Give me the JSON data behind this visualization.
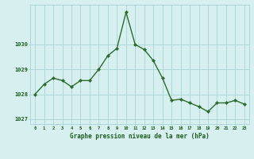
{
  "x": [
    0,
    1,
    2,
    3,
    4,
    5,
    6,
    7,
    8,
    9,
    10,
    11,
    12,
    13,
    14,
    15,
    16,
    17,
    18,
    19,
    20,
    21,
    22,
    23
  ],
  "y": [
    1028.0,
    1028.4,
    1028.65,
    1028.55,
    1028.3,
    1028.55,
    1028.55,
    1029.0,
    1029.55,
    1029.85,
    1031.3,
    1030.0,
    1029.8,
    1029.35,
    1028.65,
    1027.75,
    1027.8,
    1027.65,
    1027.5,
    1027.3,
    1027.65,
    1027.65,
    1027.75,
    1027.6
  ],
  "line_color": "#2d6a2d",
  "marker": "D",
  "marker_size": 2.2,
  "bg_color": "#d6f0f0",
  "grid_color": "#aad4d4",
  "xlabel": "Graphe pression niveau de la mer (hPa)",
  "xlabel_color": "#1a5c1a",
  "tick_color": "#1a5c1a",
  "yticks": [
    1027,
    1028,
    1029,
    1030
  ],
  "xticks": [
    0,
    1,
    2,
    3,
    4,
    5,
    6,
    7,
    8,
    9,
    10,
    11,
    12,
    13,
    14,
    15,
    16,
    17,
    18,
    19,
    20,
    21,
    22,
    23
  ],
  "ylim": [
    1026.8,
    1031.6
  ],
  "xlim": [
    -0.5,
    23.5
  ]
}
